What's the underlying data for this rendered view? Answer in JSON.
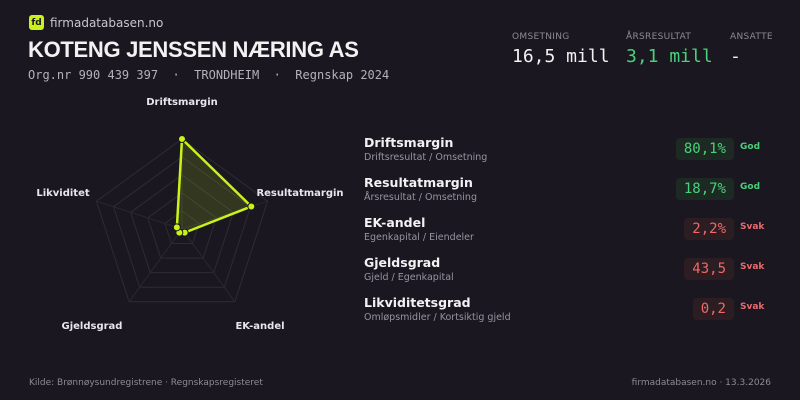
{
  "brand": {
    "logo_text": "fd",
    "name": "firmadatabasen.no"
  },
  "company": {
    "name": "KOTENG JENSSEN NÆRING AS",
    "subtitle": "Org.nr 990 439 397  ·  TRONDHEIM  ·  Regnskap 2024"
  },
  "kpis": [
    {
      "label": "OMSETNING",
      "value": "16,5 mill",
      "color": "#f2f2f2"
    },
    {
      "label": "ÅRSRESULTAT",
      "value": "3,1 mill",
      "color": "#4ad07a"
    },
    {
      "label": "ANSATTE",
      "value": "-",
      "color": "#f2f2f2"
    }
  ],
  "chart_data": {
    "type": "radar",
    "axes": [
      "Driftsmargin",
      "Resultatmargin",
      "EK-andel",
      "Gjeldsgrad",
      "Likviditet"
    ],
    "scores": [
      1.0,
      0.81,
      0.05,
      0.05,
      0.06
    ],
    "range": [
      0,
      1
    ],
    "grid": true,
    "color": "#c8f21a"
  },
  "metrics": [
    {
      "name": "Driftsmargin",
      "desc": "Driftsresultat / Omsetning",
      "value": "80,1%",
      "status": "God",
      "tone": "good"
    },
    {
      "name": "Resultatmargin",
      "desc": "Årsresultat / Omsetning",
      "value": "18,7%",
      "status": "God",
      "tone": "good"
    },
    {
      "name": "EK-andel",
      "desc": "Egenkapital / Eiendeler",
      "value": "2,2%",
      "status": "Svak",
      "tone": "bad"
    },
    {
      "name": "Gjeldsgrad",
      "desc": "Gjeld / Egenkapital",
      "value": "43,5",
      "status": "Svak",
      "tone": "bad"
    },
    {
      "name": "Likviditetsgrad",
      "desc": "Omløpsmidler / Kortsiktig gjeld",
      "value": "0,2",
      "status": "Svak",
      "tone": "bad"
    }
  ],
  "footer": {
    "source": "Kilde: Brønnøysundregistrene · Regnskapsregisteret",
    "site": "firmadatabasen.no · 13.3.2026"
  }
}
